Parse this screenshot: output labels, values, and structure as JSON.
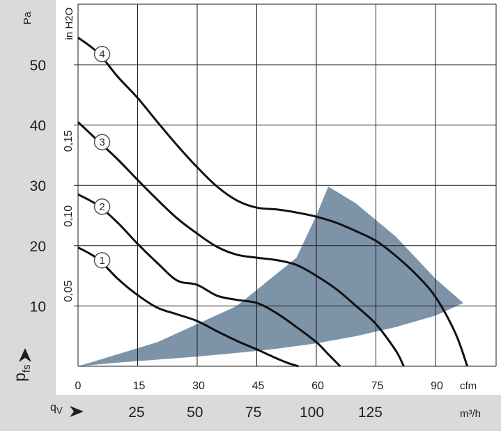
{
  "chart_data": {
    "type": "line",
    "y_primary": {
      "unit": "Pa",
      "ticks": [
        "10",
        "20",
        "30",
        "40",
        "50"
      ],
      "range": [
        0,
        62
      ]
    },
    "y_secondary": {
      "unit": "in H2O",
      "ticks": [
        "0,05",
        "0,10",
        "0,15"
      ]
    },
    "x_primary": {
      "unit": "cfm",
      "ticks": [
        "0",
        "15",
        "30",
        "45",
        "60",
        "75",
        "90"
      ],
      "range": [
        0,
        103
      ]
    },
    "x_secondary": {
      "unit": "m³/h",
      "ticks": [
        "25",
        "50",
        "75",
        "100",
        "125"
      ]
    },
    "pressure_symbol": {
      "main": "p",
      "sub": "fs"
    },
    "flow_symbol": {
      "main": "q",
      "sub": "V"
    },
    "series": [
      {
        "name": "1",
        "x": [
          0,
          5,
          10,
          15,
          20,
          25,
          30,
          35,
          40,
          45,
          50,
          53,
          55.5
        ],
        "y": [
          19.7,
          17.8,
          14.5,
          11.8,
          9.7,
          8.6,
          7.5,
          5.8,
          4.2,
          2.8,
          1.3,
          0.5,
          0
        ]
      },
      {
        "name": "2",
        "x": [
          0,
          5,
          10,
          15,
          20,
          25,
          30,
          35,
          40,
          45,
          50,
          55,
          60,
          63,
          66
        ],
        "y": [
          28.5,
          26.7,
          23.8,
          20.3,
          17.1,
          14.2,
          13.5,
          11.7,
          11.0,
          10.5,
          8.8,
          6.5,
          4.0,
          2.0,
          0
        ]
      },
      {
        "name": "3",
        "x": [
          0,
          5,
          10,
          15,
          20,
          25,
          30,
          35,
          40,
          45,
          50,
          55,
          60,
          65,
          70,
          75,
          80,
          82
        ],
        "y": [
          40.5,
          37.4,
          34.3,
          30.9,
          27.6,
          24.5,
          22.0,
          19.8,
          18.5,
          18.0,
          17.6,
          16.8,
          15.0,
          12.8,
          10.0,
          7.0,
          2.6,
          0
        ]
      },
      {
        "name": "4",
        "x": [
          0,
          5,
          10,
          15,
          20,
          25,
          30,
          35,
          40,
          45,
          50,
          55,
          60,
          65,
          70,
          75,
          80,
          85,
          90,
          95,
          98
        ],
        "y": [
          54.5,
          52.0,
          48.0,
          44.5,
          40.5,
          36.6,
          33.0,
          29.8,
          27.5,
          26.3,
          26.0,
          25.5,
          24.8,
          23.8,
          22.4,
          20.8,
          18.3,
          15.3,
          11.5,
          5.5,
          0
        ]
      }
    ],
    "operating_zone": {
      "x": [
        0,
        20,
        40,
        55,
        60,
        63,
        70,
        80,
        90,
        97,
        90,
        80,
        70,
        60,
        50,
        40,
        30,
        20,
        10,
        0
      ],
      "y": [
        0,
        4.0,
        10.0,
        18.0,
        25.0,
        29.8,
        27.0,
        21.5,
        14.5,
        10.5,
        8.4,
        6.5,
        5.0,
        3.8,
        2.9,
        2.2,
        1.6,
        1.1,
        0.6,
        0
      ]
    },
    "grid": true,
    "colors": {
      "curve": "#111111",
      "zone": "#7d93a8",
      "band": "#d9dadb",
      "grid": "#1a1a1a"
    }
  }
}
